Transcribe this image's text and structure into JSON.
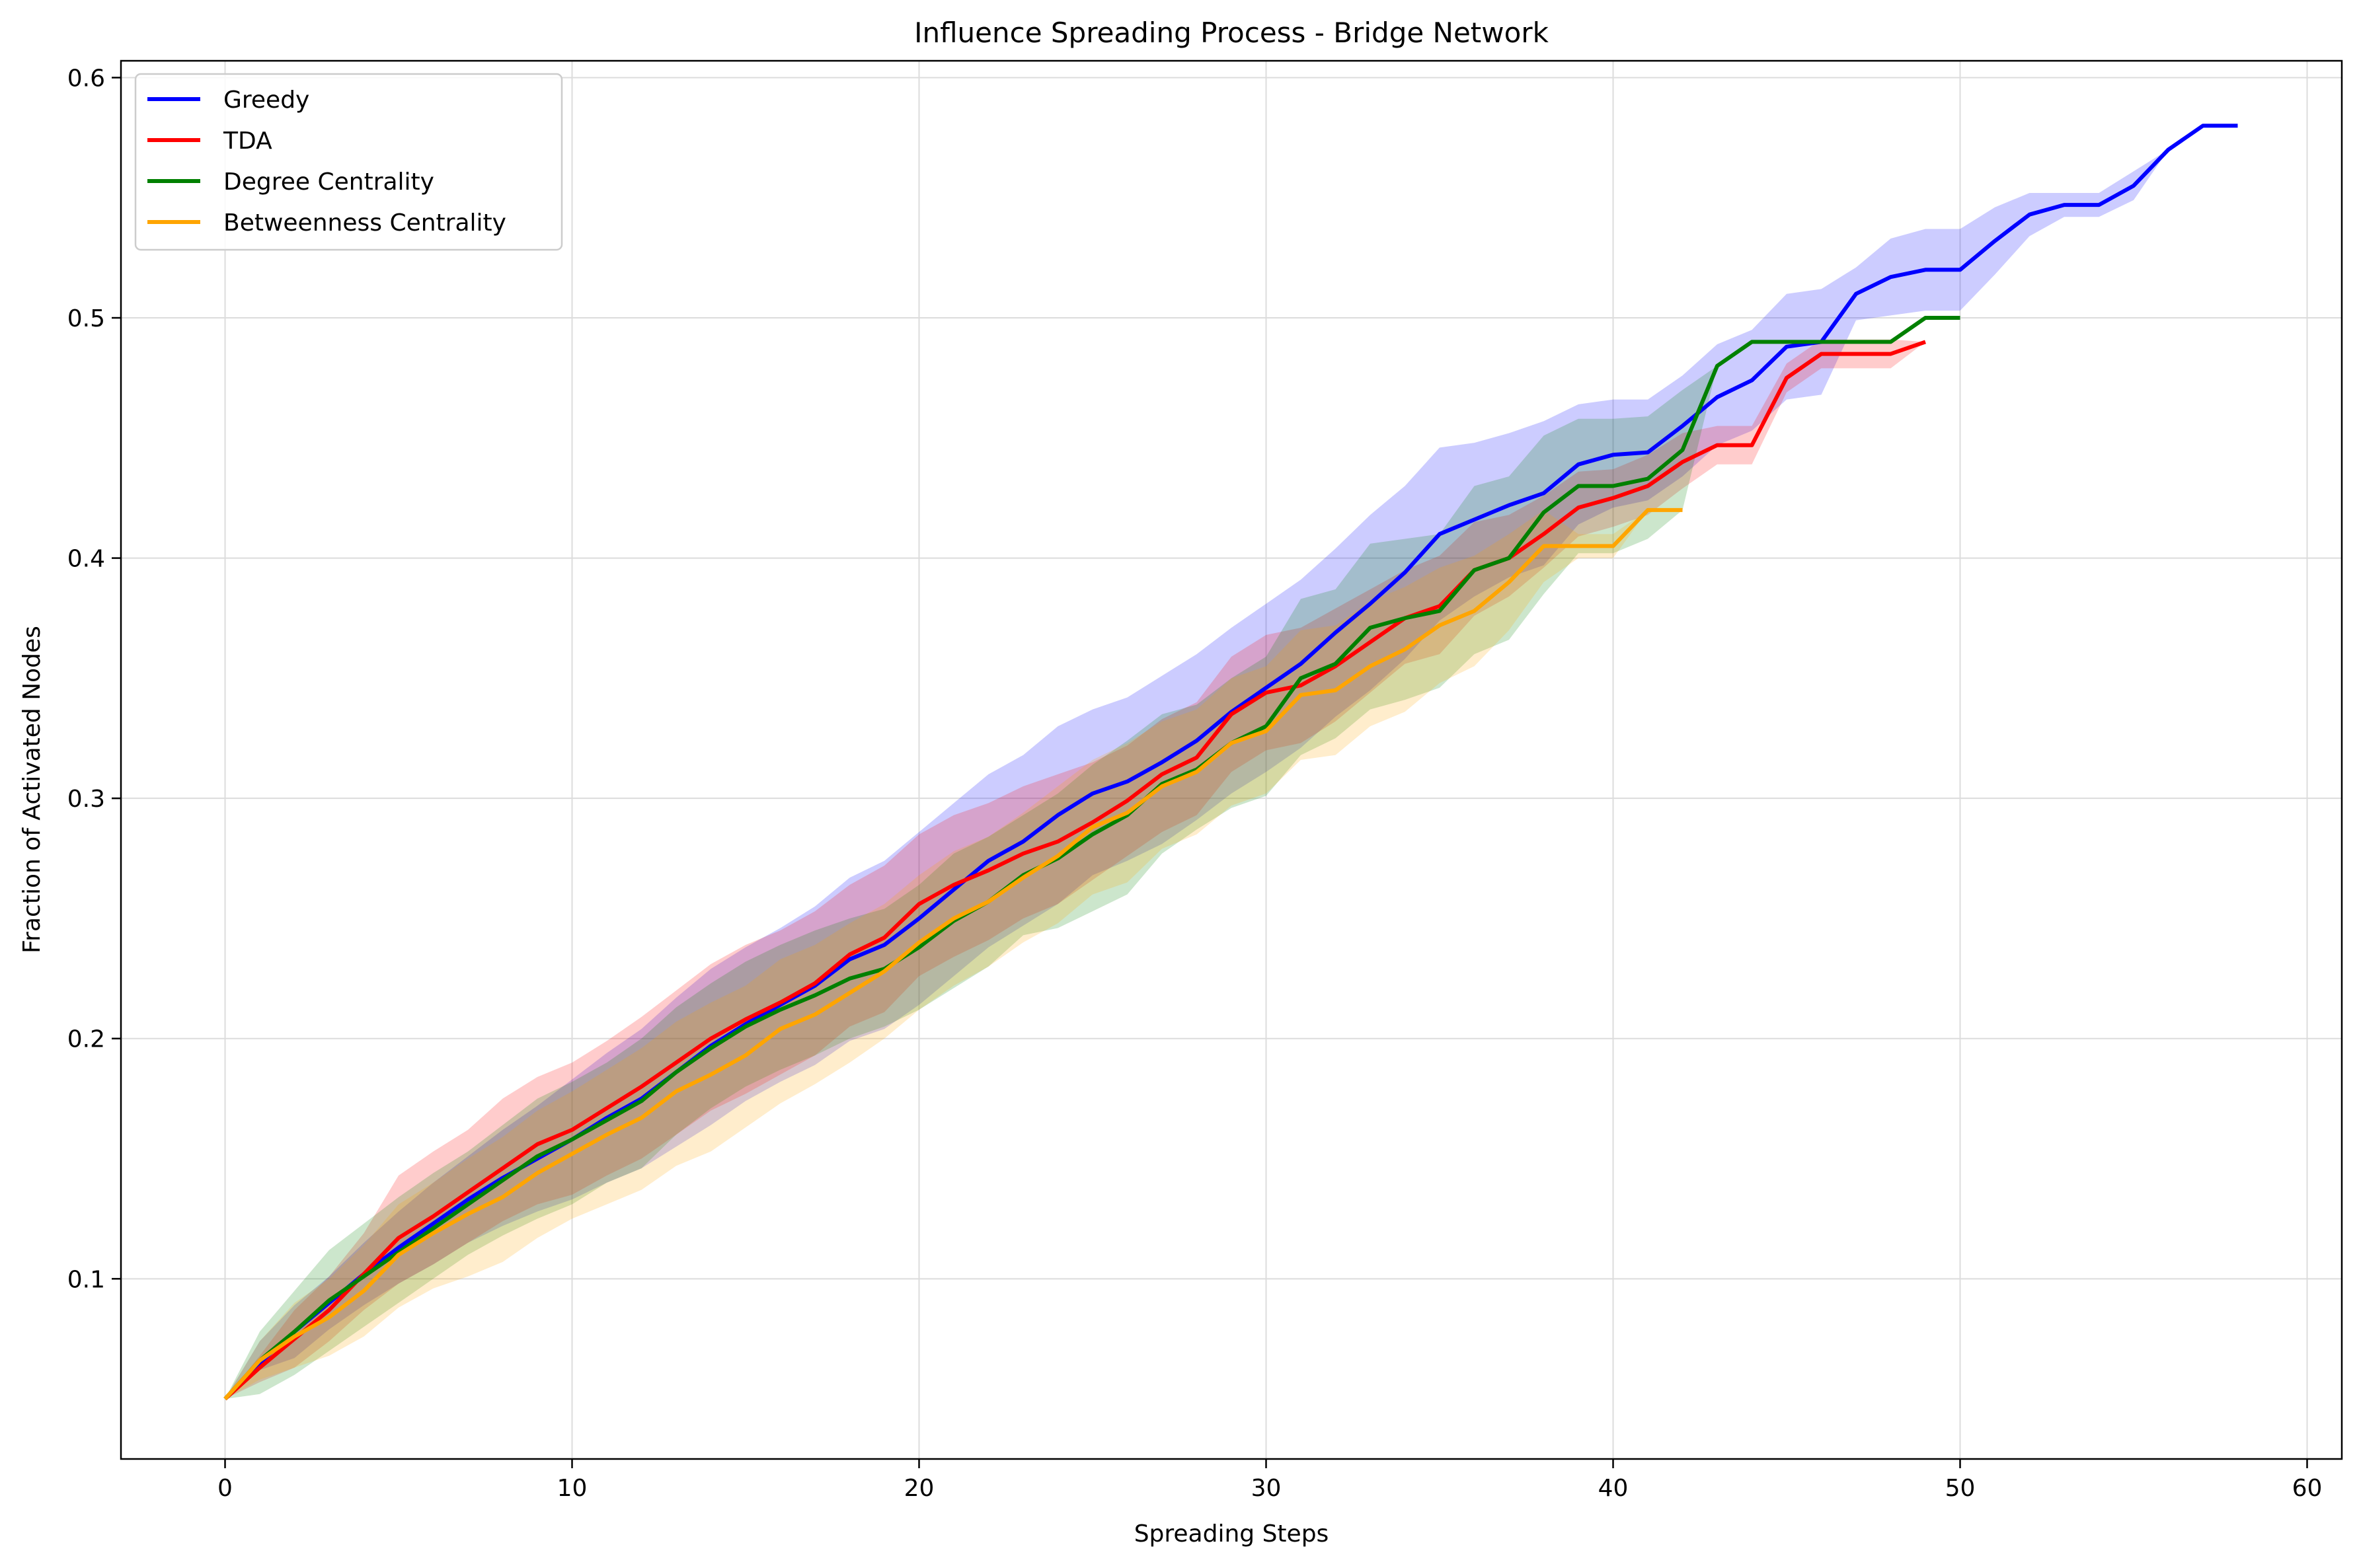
{
  "chart_data": {
    "type": "line",
    "title": "Influence Spreading Process - Bridge Network",
    "xlabel": "Spreading Steps",
    "ylabel": "Fraction of Activated Nodes",
    "xlim": [
      -3,
      61
    ],
    "ylim": [
      0.025,
      0.607
    ],
    "xticks": [
      0,
      10,
      20,
      30,
      40,
      50,
      60
    ],
    "yticks": [
      0.1,
      0.2,
      0.3,
      0.4,
      0.5,
      0.6
    ],
    "grid": true,
    "legend_position": "upper-left",
    "series": [
      {
        "name": "Greedy",
        "color": "#0000ff",
        "x": [
          0,
          1,
          2,
          3,
          4,
          5,
          6,
          7,
          8,
          9,
          10,
          11,
          12,
          13,
          14,
          15,
          16,
          17,
          18,
          19,
          20,
          21,
          22,
          23,
          24,
          25,
          26,
          27,
          28,
          29,
          30,
          31,
          32,
          33,
          34,
          35,
          36,
          37,
          38,
          39,
          40,
          41,
          42,
          43,
          44,
          45,
          46,
          47,
          48,
          49,
          50,
          51,
          52,
          53,
          54,
          55,
          56,
          57,
          58
        ],
        "values": [
          0.05,
          0.065,
          0.078,
          0.09,
          0.102,
          0.113,
          0.123,
          0.133,
          0.142,
          0.15,
          0.158,
          0.167,
          0.175,
          0.186,
          0.197,
          0.206,
          0.214,
          0.222,
          0.233,
          0.239,
          0.25,
          0.262,
          0.274,
          0.282,
          0.293,
          0.302,
          0.307,
          0.315,
          0.324,
          0.336,
          0.346,
          0.356,
          0.369,
          0.381,
          0.394,
          0.41,
          0.416,
          0.422,
          0.427,
          0.439,
          0.443,
          0.444,
          0.455,
          0.467,
          0.474,
          0.488,
          0.49,
          0.51,
          0.517,
          0.52,
          0.52,
          0.532,
          0.543,
          0.547,
          0.547,
          0.555,
          0.57,
          0.58,
          0.58
        ],
        "lower": [
          0.05,
          0.062,
          0.067,
          0.079,
          0.089,
          0.098,
          0.106,
          0.115,
          0.122,
          0.128,
          0.133,
          0.14,
          0.146,
          0.155,
          0.164,
          0.174,
          0.182,
          0.189,
          0.199,
          0.204,
          0.214,
          0.226,
          0.238,
          0.247,
          0.256,
          0.268,
          0.274,
          0.281,
          0.291,
          0.302,
          0.311,
          0.321,
          0.334,
          0.345,
          0.358,
          0.374,
          0.384,
          0.392,
          0.397,
          0.414,
          0.421,
          0.424,
          0.434,
          0.447,
          0.453,
          0.466,
          0.468,
          0.499,
          0.501,
          0.503,
          0.503,
          0.518,
          0.534,
          0.542,
          0.542,
          0.549,
          0.57,
          0.58,
          0.58
        ],
        "upper": [
          0.05,
          0.074,
          0.089,
          0.101,
          0.115,
          0.128,
          0.14,
          0.151,
          0.162,
          0.172,
          0.183,
          0.194,
          0.204,
          0.217,
          0.229,
          0.238,
          0.246,
          0.255,
          0.267,
          0.274,
          0.286,
          0.298,
          0.31,
          0.318,
          0.33,
          0.337,
          0.342,
          0.351,
          0.36,
          0.371,
          0.381,
          0.391,
          0.404,
          0.418,
          0.43,
          0.446,
          0.448,
          0.452,
          0.457,
          0.464,
          0.466,
          0.466,
          0.476,
          0.489,
          0.495,
          0.51,
          0.512,
          0.521,
          0.533,
          0.537,
          0.537,
          0.546,
          0.552,
          0.552,
          0.552,
          0.561,
          0.57,
          0.58,
          0.58
        ]
      },
      {
        "name": "TDA",
        "color": "#ff0000",
        "x": [
          0,
          1,
          2,
          3,
          4,
          5,
          6,
          7,
          8,
          9,
          10,
          11,
          12,
          13,
          14,
          15,
          16,
          17,
          18,
          19,
          20,
          21,
          22,
          23,
          24,
          25,
          26,
          27,
          28,
          29,
          30,
          31,
          32,
          33,
          34,
          35,
          36,
          37,
          38,
          39,
          40,
          41,
          42,
          43,
          44,
          45,
          46,
          47,
          48,
          49
        ],
        "values": [
          0.05,
          0.063,
          0.075,
          0.087,
          0.102,
          0.117,
          0.126,
          0.136,
          0.146,
          0.156,
          0.162,
          0.171,
          0.18,
          0.19,
          0.2,
          0.208,
          0.215,
          0.223,
          0.235,
          0.242,
          0.256,
          0.264,
          0.27,
          0.277,
          0.282,
          0.29,
          0.299,
          0.31,
          0.317,
          0.335,
          0.344,
          0.347,
          0.355,
          0.365,
          0.375,
          0.38,
          0.395,
          0.4,
          0.41,
          0.421,
          0.425,
          0.43,
          0.44,
          0.447,
          0.447,
          0.475,
          0.485,
          0.485,
          0.485,
          0.49
        ],
        "lower": [
          0.05,
          0.057,
          0.063,
          0.074,
          0.087,
          0.098,
          0.106,
          0.115,
          0.124,
          0.131,
          0.135,
          0.143,
          0.15,
          0.16,
          0.17,
          0.177,
          0.185,
          0.193,
          0.205,
          0.211,
          0.226,
          0.234,
          0.241,
          0.25,
          0.256,
          0.266,
          0.276,
          0.286,
          0.293,
          0.311,
          0.32,
          0.323,
          0.332,
          0.344,
          0.356,
          0.36,
          0.376,
          0.384,
          0.396,
          0.409,
          0.413,
          0.418,
          0.429,
          0.439,
          0.439,
          0.469,
          0.479,
          0.479,
          0.479,
          0.49
        ],
        "upper": [
          0.05,
          0.068,
          0.087,
          0.101,
          0.119,
          0.143,
          0.153,
          0.162,
          0.175,
          0.184,
          0.19,
          0.199,
          0.209,
          0.22,
          0.231,
          0.239,
          0.245,
          0.253,
          0.264,
          0.272,
          0.285,
          0.293,
          0.298,
          0.305,
          0.31,
          0.315,
          0.322,
          0.333,
          0.34,
          0.359,
          0.368,
          0.371,
          0.379,
          0.387,
          0.395,
          0.401,
          0.415,
          0.418,
          0.426,
          0.436,
          0.437,
          0.443,
          0.452,
          0.455,
          0.455,
          0.481,
          0.491,
          0.491,
          0.491,
          0.49
        ]
      },
      {
        "name": "Degree Centrality",
        "color": "#008000",
        "x": [
          0,
          1,
          2,
          3,
          4,
          5,
          6,
          7,
          8,
          9,
          10,
          11,
          12,
          13,
          14,
          15,
          16,
          17,
          18,
          19,
          20,
          21,
          22,
          23,
          24,
          25,
          26,
          27,
          28,
          29,
          30,
          31,
          32,
          33,
          34,
          35,
          36,
          37,
          38,
          39,
          40,
          41,
          42,
          43,
          44,
          45,
          46,
          47,
          48,
          49,
          50
        ],
        "values": [
          0.05,
          0.066,
          0.078,
          0.091,
          0.101,
          0.111,
          0.121,
          0.131,
          0.141,
          0.151,
          0.158,
          0.166,
          0.174,
          0.186,
          0.196,
          0.205,
          0.212,
          0.218,
          0.225,
          0.229,
          0.238,
          0.249,
          0.257,
          0.268,
          0.275,
          0.285,
          0.293,
          0.306,
          0.312,
          0.323,
          0.33,
          0.35,
          0.356,
          0.371,
          0.375,
          0.378,
          0.395,
          0.4,
          0.419,
          0.43,
          0.43,
          0.433,
          0.445,
          0.48,
          0.49,
          0.49,
          0.49,
          0.49,
          0.49,
          0.5,
          0.5
        ],
        "lower": [
          0.05,
          0.052,
          0.06,
          0.07,
          0.08,
          0.09,
          0.1,
          0.11,
          0.118,
          0.125,
          0.131,
          0.14,
          0.146,
          0.16,
          0.171,
          0.18,
          0.187,
          0.193,
          0.2,
          0.205,
          0.212,
          0.221,
          0.23,
          0.243,
          0.246,
          0.253,
          0.26,
          0.277,
          0.287,
          0.296,
          0.301,
          0.318,
          0.325,
          0.337,
          0.341,
          0.346,
          0.36,
          0.366,
          0.385,
          0.402,
          0.402,
          0.408,
          0.42,
          0.48,
          0.49,
          0.49,
          0.49,
          0.49,
          0.49,
          0.5,
          0.5
        ],
        "upper": [
          0.05,
          0.078,
          0.095,
          0.112,
          0.123,
          0.134,
          0.144,
          0.153,
          0.164,
          0.175,
          0.182,
          0.19,
          0.2,
          0.213,
          0.223,
          0.232,
          0.239,
          0.245,
          0.25,
          0.254,
          0.264,
          0.277,
          0.284,
          0.293,
          0.302,
          0.314,
          0.324,
          0.335,
          0.339,
          0.35,
          0.359,
          0.383,
          0.387,
          0.406,
          0.408,
          0.41,
          0.43,
          0.434,
          0.451,
          0.458,
          0.458,
          0.459,
          0.47,
          0.48,
          0.49,
          0.49,
          0.49,
          0.49,
          0.49,
          0.5,
          0.5
        ]
      },
      {
        "name": "Betweenness Centrality",
        "color": "#ffa500",
        "x": [
          0,
          1,
          2,
          3,
          4,
          5,
          6,
          7,
          8,
          9,
          10,
          11,
          12,
          13,
          14,
          15,
          16,
          17,
          18,
          19,
          20,
          21,
          22,
          23,
          24,
          25,
          26,
          27,
          28,
          29,
          30,
          31,
          32,
          33,
          34,
          35,
          36,
          37,
          38,
          39,
          40,
          41,
          42
        ],
        "values": [
          0.05,
          0.066,
          0.076,
          0.084,
          0.095,
          0.11,
          0.119,
          0.127,
          0.134,
          0.144,
          0.152,
          0.16,
          0.167,
          0.178,
          0.185,
          0.193,
          0.204,
          0.21,
          0.219,
          0.228,
          0.24,
          0.25,
          0.257,
          0.267,
          0.276,
          0.288,
          0.294,
          0.305,
          0.311,
          0.323,
          0.328,
          0.343,
          0.345,
          0.355,
          0.362,
          0.372,
          0.378,
          0.39,
          0.405,
          0.405,
          0.405,
          0.42,
          0.42
        ],
        "lower": [
          0.05,
          0.058,
          0.063,
          0.068,
          0.076,
          0.088,
          0.096,
          0.101,
          0.107,
          0.117,
          0.125,
          0.131,
          0.137,
          0.147,
          0.153,
          0.163,
          0.173,
          0.181,
          0.19,
          0.2,
          0.212,
          0.222,
          0.23,
          0.24,
          0.248,
          0.26,
          0.265,
          0.279,
          0.285,
          0.297,
          0.302,
          0.316,
          0.318,
          0.33,
          0.336,
          0.348,
          0.355,
          0.37,
          0.39,
          0.4,
          0.4,
          0.42,
          0.42
        ],
        "upper": [
          0.05,
          0.074,
          0.09,
          0.1,
          0.114,
          0.131,
          0.14,
          0.15,
          0.159,
          0.17,
          0.178,
          0.187,
          0.196,
          0.207,
          0.215,
          0.222,
          0.233,
          0.239,
          0.248,
          0.256,
          0.268,
          0.278,
          0.284,
          0.294,
          0.305,
          0.316,
          0.323,
          0.332,
          0.337,
          0.35,
          0.355,
          0.37,
          0.372,
          0.382,
          0.388,
          0.396,
          0.401,
          0.41,
          0.42,
          0.41,
          0.41,
          0.42,
          0.42
        ]
      }
    ]
  }
}
